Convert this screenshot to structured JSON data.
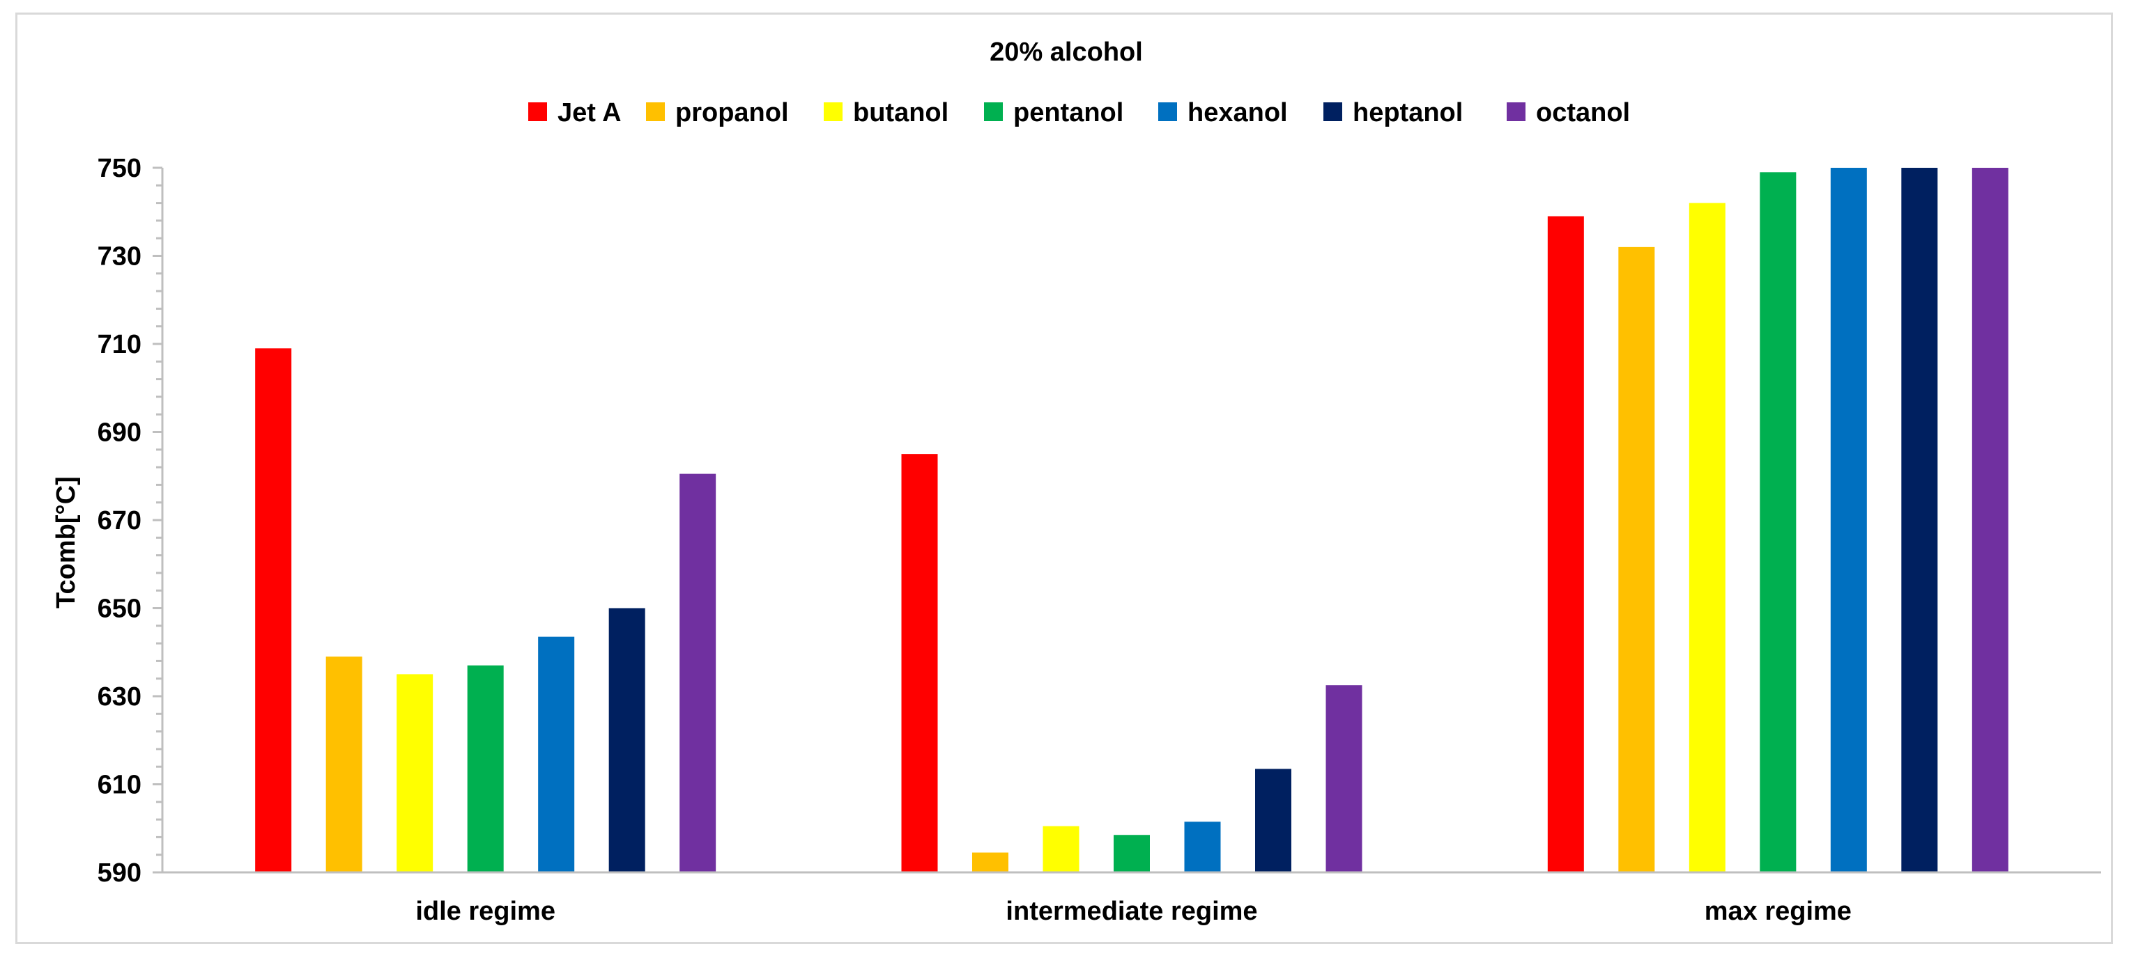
{
  "chart_data": {
    "type": "bar",
    "title": "20% alcohol",
    "xlabel": "",
    "ylabel": "Tcomb[°C]",
    "ylim": [
      590,
      750
    ],
    "yticks": [
      590,
      610,
      630,
      650,
      670,
      690,
      710,
      730,
      750
    ],
    "grid": false,
    "legend_position": "top-center",
    "categories": [
      "idle regime",
      "intermediate regime",
      "max regime"
    ],
    "series": [
      {
        "name": "Jet A",
        "color": "#ff0000",
        "values": [
          709,
          685,
          739
        ]
      },
      {
        "name": "propanol",
        "color": "#ffc000",
        "values": [
          639,
          594.5,
          732
        ]
      },
      {
        "name": "butanol",
        "color": "#ffff00",
        "values": [
          635,
          600.5,
          742
        ]
      },
      {
        "name": "pentanol",
        "color": "#00b050",
        "values": [
          637,
          598.5,
          749
        ]
      },
      {
        "name": "hexanol",
        "color": "#0070c0",
        "values": [
          643.5,
          601.5,
          750
        ]
      },
      {
        "name": "heptanol",
        "color": "#002060",
        "values": [
          650,
          613.5,
          750
        ]
      },
      {
        "name": "octanol",
        "color": "#7030a0",
        "values": [
          680.5,
          632.5,
          750
        ]
      }
    ]
  }
}
